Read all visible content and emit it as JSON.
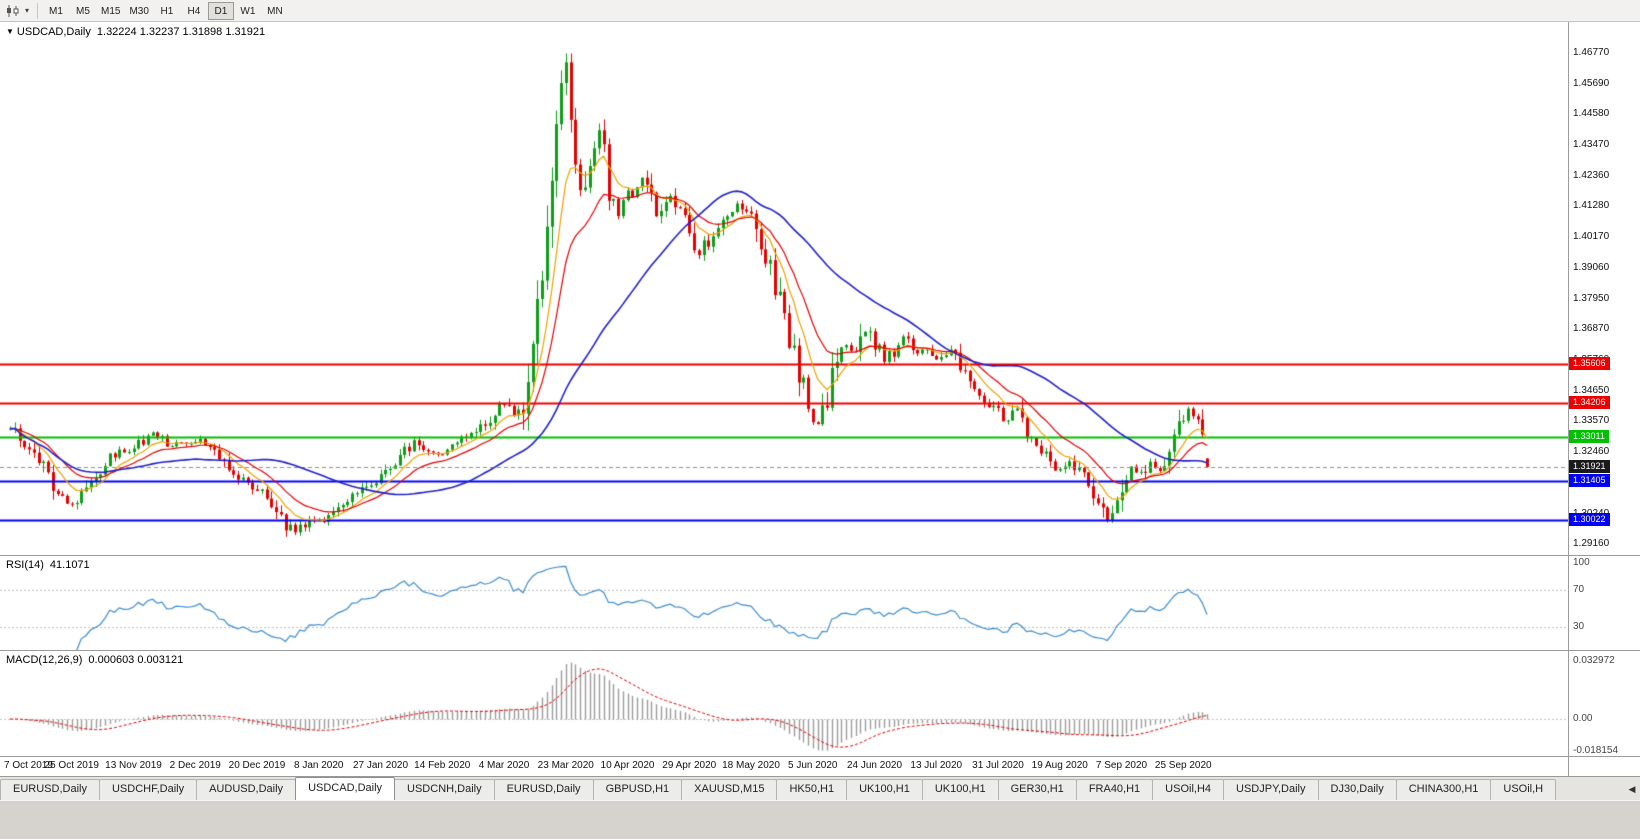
{
  "icons": {
    "symbol_dropdown": "▼",
    "toolbar_caret": "▾",
    "tab_scroll_left": "◀"
  },
  "toolbar": {
    "timeframes": [
      "M1",
      "M5",
      "M15",
      "M30",
      "H1",
      "H4",
      "D1",
      "W1",
      "MN"
    ],
    "active_timeframe": "D1"
  },
  "chart": {
    "symbol_title": "USDCAD,Daily",
    "ohlc": "1.32224 1.32237 1.31898 1.31921",
    "price_axis_labels": [
      "1.46770",
      "1.45690",
      "1.44580",
      "1.43470",
      "1.42360",
      "1.41280",
      "1.40170",
      "1.39060",
      "1.37950",
      "1.36870",
      "1.35760",
      "1.34650",
      "1.33570",
      "1.32460",
      "1.31350",
      "1.30240",
      "1.29160"
    ],
    "hlines": [
      {
        "price": 1.35606,
        "label": "1.35606",
        "color": "#ee0000"
      },
      {
        "price": 1.34206,
        "label": "1.34206",
        "color": "#ee0000"
      },
      {
        "price": 1.33011,
        "label": "1.33011",
        "color": "#00c000"
      },
      {
        "price": 1.31405,
        "label": "1.31405",
        "color": "#0000ff"
      },
      {
        "price": 1.30022,
        "label": "1.30022",
        "color": "#0000ff"
      }
    ],
    "bid": {
      "price": 1.31921,
      "label": "1.31921",
      "color": "#1a1a1a"
    }
  },
  "rsi_panel": {
    "label": "RSI(14)",
    "value": "41.1071",
    "levels": [
      {
        "v": 100,
        "label": "100"
      },
      {
        "v": 70,
        "label": "70"
      },
      {
        "v": 30,
        "label": "30"
      }
    ]
  },
  "macd_panel": {
    "label": "MACD(12,26,9)",
    "values": "0.000603 0.003121",
    "axis": [
      {
        "v": 0.032972,
        "label": "0.032972"
      },
      {
        "v": 0,
        "label": "0.00"
      },
      {
        "v": -0.018154,
        "label": "-0.018154"
      }
    ]
  },
  "tabs": [
    "EURUSD,Daily",
    "USDCHF,Daily",
    "AUDUSD,Daily",
    "USDCAD,Daily",
    "USDCNH,Daily",
    "EURUSD,Daily",
    "GBPUSD,H1",
    "XAUUSD,M15",
    "HK50,H1",
    "UK100,H1",
    "UK100,H1",
    "GER30,H1",
    "FRA40,H1",
    "USOil,H4",
    "USDJPY,Daily",
    "DJ30,Daily",
    "CHINA300,H1",
    "USOil,H"
  ],
  "active_tab_index": 3,
  "chart_data": {
    "type": "candlestick",
    "symbol": "USDCAD",
    "timeframe": "Daily",
    "title": "USDCAD,Daily",
    "last_ohlc": {
      "open": 1.32224,
      "high": 1.32237,
      "low": 1.31898,
      "close": 1.31921
    },
    "bar_count": 253,
    "bars_per_x_label": 13,
    "x_labels": [
      "7 Oct 2019",
      "25 Oct 2019",
      "13 Nov 2019",
      "2 Dec 2019",
      "20 Dec 2019",
      "8 Jan 2020",
      "27 Jan 2020",
      "14 Feb 2020",
      "4 Mar 2020",
      "23 Mar 2020",
      "10 Apr 2020",
      "29 Apr 2020",
      "18 May 2020",
      "5 Jun 2020",
      "24 Jun 2020",
      "13 Jul 2020",
      "31 Jul 2020",
      "19 Aug 2020",
      "7 Sep 2020",
      "25 Sep 2020"
    ],
    "price_range": {
      "min": 1.2872,
      "max": 1.479
    },
    "close_keyframes": [
      [
        0,
        1.333
      ],
      [
        5,
        1.3245
      ],
      [
        10,
        1.3085
      ],
      [
        13,
        1.306
      ],
      [
        17,
        1.314
      ],
      [
        21,
        1.3225
      ],
      [
        26,
        1.3265
      ],
      [
        30,
        1.331
      ],
      [
        34,
        1.327
      ],
      [
        39,
        1.329
      ],
      [
        43,
        1.3255
      ],
      [
        47,
        1.3165
      ],
      [
        52,
        1.311
      ],
      [
        55,
        1.3065
      ],
      [
        58,
        1.2985
      ],
      [
        60,
        1.2958
      ],
      [
        63,
        1.2995
      ],
      [
        66,
        1.301
      ],
      [
        70,
        1.307
      ],
      [
        74,
        1.311
      ],
      [
        78,
        1.316
      ],
      [
        82,
        1.322
      ],
      [
        85,
        1.3285
      ],
      [
        88,
        1.3245
      ],
      [
        91,
        1.3245
      ],
      [
        95,
        1.329
      ],
      [
        100,
        1.3345
      ],
      [
        104,
        1.342
      ],
      [
        106,
        1.3375
      ],
      [
        108,
        1.343
      ],
      [
        110,
        1.362
      ],
      [
        112,
        1.388
      ],
      [
        114,
        1.424
      ],
      [
        116,
        1.452
      ],
      [
        117,
        1.464
      ],
      [
        118,
        1.442
      ],
      [
        120,
        1.418
      ],
      [
        122,
        1.431
      ],
      [
        124,
        1.439
      ],
      [
        126,
        1.421
      ],
      [
        128,
        1.409
      ],
      [
        130,
        1.416
      ],
      [
        133,
        1.423
      ],
      [
        136,
        1.409
      ],
      [
        139,
        1.416
      ],
      [
        141,
        1.411
      ],
      [
        143,
        1.406
      ],
      [
        145,
        1.396
      ],
      [
        148,
        1.403
      ],
      [
        151,
        1.411
      ],
      [
        153,
        1.413
      ],
      [
        156,
        1.409
      ],
      [
        158,
        1.399
      ],
      [
        160,
        1.391
      ],
      [
        162,
        1.379
      ],
      [
        164,
        1.364
      ],
      [
        166,
        1.352
      ],
      [
        168,
        1.343
      ],
      [
        170,
        1.334
      ],
      [
        172,
        1.343
      ],
      [
        174,
        1.357
      ],
      [
        176,
        1.363
      ],
      [
        178,
        1.359
      ],
      [
        180,
        1.369
      ],
      [
        182,
        1.363
      ],
      [
        184,
        1.358
      ],
      [
        186,
        1.361
      ],
      [
        188,
        1.366
      ],
      [
        190,
        1.36
      ],
      [
        192,
        1.362
      ],
      [
        195,
        1.358
      ],
      [
        198,
        1.361
      ],
      [
        200,
        1.354
      ],
      [
        202,
        1.349
      ],
      [
        204,
        1.343
      ],
      [
        206,
        1.341
      ],
      [
        208,
        1.339
      ],
      [
        210,
        1.335
      ],
      [
        212,
        1.34
      ],
      [
        214,
        1.331
      ],
      [
        216,
        1.326
      ],
      [
        218,
        1.323
      ],
      [
        220,
        1.319
      ],
      [
        223,
        1.321
      ],
      [
        225,
        1.318
      ],
      [
        227,
        1.313
      ],
      [
        229,
        1.307
      ],
      [
        231,
        1.3005
      ],
      [
        233,
        1.306
      ],
      [
        234,
        1.313
      ],
      [
        236,
        1.318
      ],
      [
        238,
        1.3165
      ],
      [
        240,
        1.3205
      ],
      [
        242,
        1.3185
      ],
      [
        244,
        1.3235
      ],
      [
        246,
        1.332
      ],
      [
        248,
        1.3405
      ],
      [
        250,
        1.333
      ],
      [
        251,
        1.325
      ],
      [
        252,
        1.3192
      ]
    ],
    "pinned_extremes": {
      "high": [
        117,
        1.4677
      ],
      "lows": [
        [
          60,
          1.2952
        ],
        [
          231,
          1.2995
        ]
      ]
    },
    "moving_averages": [
      {
        "name": "ma-fast",
        "type": "ema",
        "period": 8,
        "color": "#efa200"
      },
      {
        "name": "ma-medium",
        "type": "ema",
        "period": 16,
        "color": "#e60000"
      },
      {
        "name": "ma-slow",
        "type": "sma",
        "period": 40,
        "color": "#2121cd"
      }
    ],
    "rsi": {
      "period": 14,
      "color": "#3e8ed0",
      "levels": [
        70,
        30
      ],
      "last_value": 41.1071
    },
    "macd": {
      "fast": 12,
      "slow": 26,
      "signal": 9,
      "hist_color": "#9c9c9c",
      "signal_color": "#e60000",
      "axis_max": 0.032972,
      "axis_min": -0.018154,
      "last_macd": 0.000603,
      "last_signal": 0.003121
    },
    "style": {
      "candle_up": "#0f9d1a",
      "candle_down": "#e60000",
      "background": "#ffffff",
      "bid_line_color": "#909090",
      "grid_color": "#c4c4c4"
    }
  }
}
